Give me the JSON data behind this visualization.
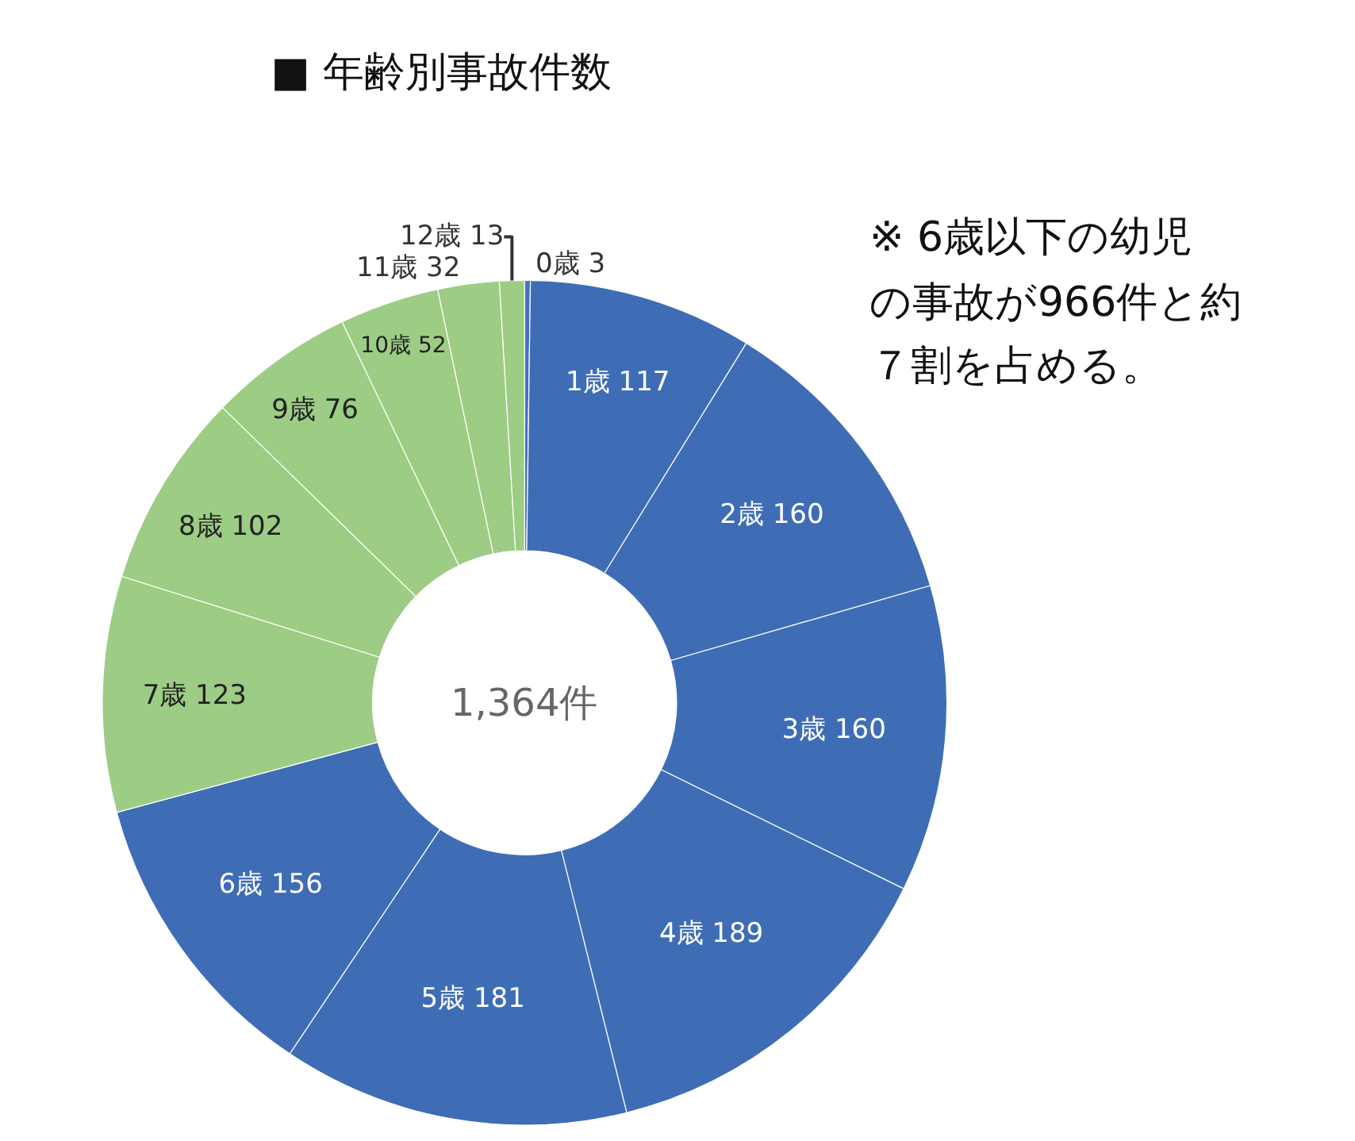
{
  "chart_data": {
    "type": "donut",
    "title": "■ 年齢別事故件数",
    "categories": [
      "0歳 3",
      "1歳 117",
      "2歳 160",
      "3歳 160",
      "4歳 189",
      "5歳 181",
      "6歳 156",
      "7歳 123",
      "8歳 102",
      "9歳 76",
      "10歳 52",
      "11歳 32",
      "12歳 13"
    ],
    "values": [
      3,
      117,
      160,
      160,
      189,
      181,
      156,
      123,
      102,
      76,
      52,
      32,
      13
    ],
    "colors": [
      "#4472c4",
      "#3f6db5",
      "#3f6db5",
      "#3f6db5",
      "#3f6db5",
      "#3f6db5",
      "#3f6db5",
      "#9dcc84",
      "#9dcc84",
      "#9dcc84",
      "#9dcc84",
      "#9dcc84",
      "#9dcc84"
    ],
    "legend": false,
    "annotations": [
      "1,364件",
      "※ 6歳以下の幼児",
      "の事故が966件と約",
      "７割を占める。"
    ]
  }
}
